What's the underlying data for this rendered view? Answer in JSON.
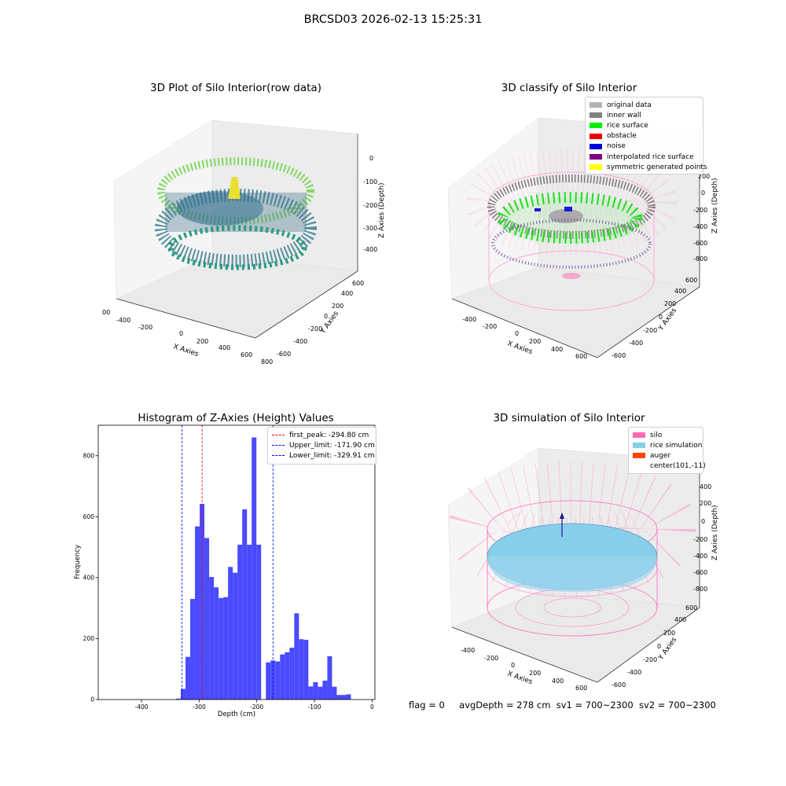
{
  "figure": {
    "title": "BRCSD03 2026-02-13 15:25:31"
  },
  "panels": {
    "raw": {
      "title": "3D Plot of Silo Interior(row data)",
      "x_label": "X Axies",
      "y_label": "Y Axies",
      "z_label": "Z Axies (Depth)",
      "x_ticks": [
        "-600",
        "-400",
        "-200",
        "0",
        "200",
        "400",
        "600",
        "800"
      ],
      "y_ticks": [
        "-600",
        "-400",
        "-200",
        "0",
        "200",
        "400",
        "600"
      ],
      "z_ticks": [
        "0",
        "-100",
        "-200",
        "-300",
        "-400"
      ]
    },
    "classify": {
      "title": "3D classify of Silo Interior",
      "x_label": "X Axies",
      "y_label": "Y Axies",
      "z_label": "Z Axies (Depth)",
      "x_ticks": [
        "-400",
        "-200",
        "0",
        "200",
        "400",
        "600"
      ],
      "y_ticks": [
        "-600",
        "-400",
        "-200",
        "0",
        "200",
        "400",
        "600"
      ],
      "z_ticks": [
        "200",
        "0",
        "-200",
        "-400",
        "-600",
        "-800"
      ],
      "legend": [
        {
          "label": "original data",
          "color": "#b3b3b3"
        },
        {
          "label": "inner wall",
          "color": "#808080"
        },
        {
          "label": "rice surface",
          "color": "#00ee00"
        },
        {
          "label": "obstacle",
          "color": "#ee0000"
        },
        {
          "label": "noise",
          "color": "#0000dd"
        },
        {
          "label": "interpolated rice surface",
          "color": "#800080"
        },
        {
          "label": "symmetric generated points",
          "color": "#ffff00"
        }
      ]
    },
    "simulation": {
      "title": "3D simulation of Silo Interior",
      "x_label": "X Axies",
      "y_label": "Y Axies",
      "z_label": "Z Axies (Depth)",
      "x_ticks": [
        "-400",
        "-200",
        "0",
        "200",
        "400",
        "600"
      ],
      "y_ticks": [
        "-600",
        "-400",
        "-200",
        "0",
        "200",
        "400",
        "600"
      ],
      "z_ticks": [
        "400",
        "200",
        "0",
        "-200",
        "-400",
        "-600",
        "-800"
      ],
      "legend": [
        {
          "label": "silo",
          "color": "#ff69b4"
        },
        {
          "label": "rice simulation",
          "color": "#87ceeb"
        },
        {
          "label": "auger",
          "color": "#ff4500"
        },
        {
          "label": "center(101,-11)",
          "color": ""
        }
      ]
    }
  },
  "status_line": {
    "flag": "flag = 0",
    "avg_depth": "avgDepth = 278 cm",
    "sv1": "sv1 = 700~2300",
    "sv2": "sv2 = 700~2300"
  },
  "chart_data": {
    "type": "bar",
    "title": "Histogram of Z-Axies (Height) Values",
    "xlabel": "Depth (cm)",
    "ylabel": "Frequency",
    "xlim": [
      -475,
      5
    ],
    "ylim": [
      0,
      900
    ],
    "x_ticks": [
      -400,
      -300,
      -200,
      -100,
      0
    ],
    "y_ticks": [
      0,
      200,
      400,
      600,
      800
    ],
    "bar_color": "#4a4aff",
    "bin_width": 8.2,
    "bin_starts": [
      -340,
      -331.8,
      -323.6,
      -315.4,
      -307.2,
      -299,
      -290.8,
      -282.6,
      -274.4,
      -266.2,
      -258,
      -249.8,
      -241.6,
      -233.4,
      -225.2,
      -217,
      -208.8,
      -200.6,
      -192.4,
      -184.2,
      -176,
      -167.8,
      -159.6,
      -151.4,
      -143.2,
      -135,
      -126.8,
      -118.6,
      -110.4,
      -102.2,
      -94,
      -85.8,
      -77.6,
      -69.4,
      -61.2,
      -53,
      -44.8,
      -36.6,
      -28.4,
      -20.2
    ],
    "values": [
      3,
      35,
      140,
      330,
      568,
      642,
      530,
      402,
      368,
      333,
      336,
      435,
      416,
      508,
      624,
      508,
      860,
      508,
      0,
      122,
      128,
      125,
      148,
      155,
      170,
      283,
      198,
      196,
      43,
      57,
      42,
      62,
      142,
      42,
      15,
      15,
      17,
      0,
      0,
      0
    ],
    "vlines": [
      {
        "label": "first_peak: -294.80 cm",
        "x": -294.8,
        "color": "#ff0000"
      },
      {
        "label": "Upper_limit: -171.90 cm",
        "x": -171.9,
        "color": "#0000ff"
      },
      {
        "label": "Lower_limit: -329.91 cm",
        "x": -329.91,
        "color": "#0000ff"
      }
    ]
  }
}
